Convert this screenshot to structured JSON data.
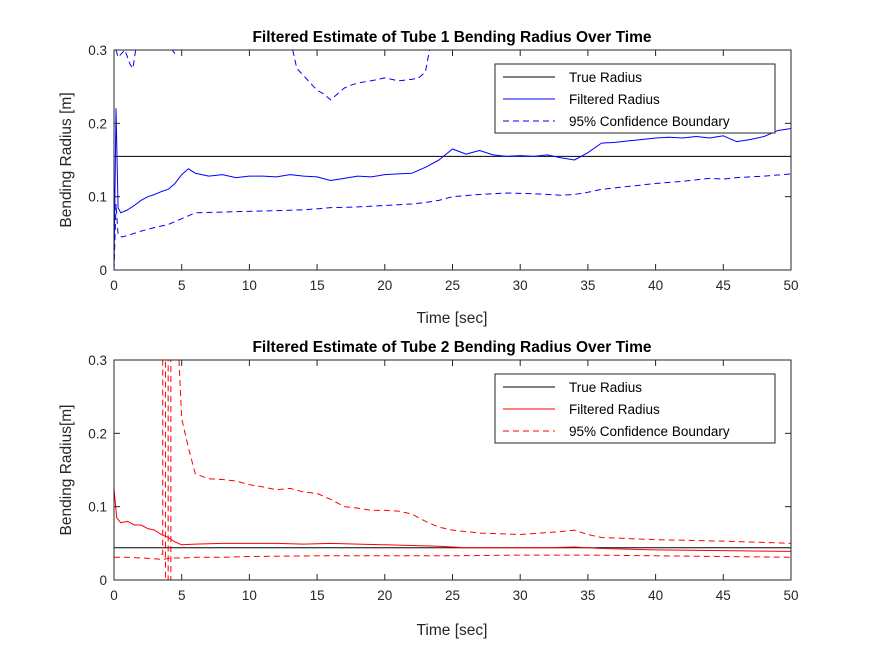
{
  "chart_data": [
    {
      "type": "line",
      "title": "Filtered Estimate of Tube 1 Bending Radius Over Time",
      "xlabel": "Time [sec]",
      "ylabel": "Bending Radius [m]",
      "xlim": [
        0,
        50
      ],
      "ylim": [
        0,
        0.3
      ],
      "xticks": [
        "0",
        "5",
        "10",
        "15",
        "20",
        "25",
        "30",
        "35",
        "40",
        "45",
        "50"
      ],
      "yticks": [
        "0",
        "0.1",
        "0.2",
        "0.3"
      ],
      "grid": false,
      "legend_position": "top-right",
      "colors": {
        "true": "#000000",
        "filtered": "#0000ff",
        "conf": "#0000ff"
      },
      "series": [
        {
          "name": "True Radius",
          "style": "solid",
          "color": "#000000",
          "x": [
            0,
            50
          ],
          "y": [
            0.155,
            0.155
          ]
        },
        {
          "name": "Filtered Radius",
          "style": "solid",
          "color": "#0000ff",
          "x": [
            0,
            0.15,
            0.3,
            0.5,
            1,
            1.5,
            2,
            2.5,
            3,
            3.5,
            4,
            4.5,
            5,
            5.5,
            6,
            7,
            8,
            9,
            10,
            11,
            12,
            13,
            14,
            15,
            16,
            17,
            18,
            19,
            20,
            21,
            22,
            23,
            24,
            25,
            26,
            27,
            28,
            29,
            30,
            31,
            32,
            33,
            34,
            35,
            36,
            37,
            38,
            39,
            40,
            41,
            42,
            43,
            44,
            45,
            46,
            47,
            48,
            49,
            50
          ],
          "y": [
            0.0,
            0.22,
            0.085,
            0.078,
            0.082,
            0.088,
            0.095,
            0.1,
            0.103,
            0.107,
            0.11,
            0.118,
            0.13,
            0.138,
            0.132,
            0.128,
            0.13,
            0.126,
            0.128,
            0.128,
            0.127,
            0.13,
            0.128,
            0.127,
            0.122,
            0.125,
            0.128,
            0.127,
            0.13,
            0.131,
            0.132,
            0.14,
            0.15,
            0.165,
            0.158,
            0.163,
            0.157,
            0.155,
            0.156,
            0.155,
            0.157,
            0.153,
            0.15,
            0.16,
            0.173,
            0.174,
            0.176,
            0.178,
            0.18,
            0.181,
            0.18,
            0.182,
            0.18,
            0.183,
            0.175,
            0.178,
            0.182,
            0.19,
            0.193
          ]
        },
        {
          "name": "95% Confidence Boundary",
          "style": "dashed",
          "color": "#0000ff",
          "x": [
            0,
            0.15,
            0.3,
            0.6,
            1,
            2,
            3,
            4,
            4.5,
            5,
            6,
            8,
            10,
            12,
            14,
            16,
            18,
            20,
            22,
            23,
            24,
            25,
            27,
            29,
            31,
            33,
            34,
            35,
            36,
            38,
            40,
            42,
            44,
            45,
            46,
            48,
            50
          ],
          "y": [
            0.0,
            0.09,
            0.048,
            0.045,
            0.047,
            0.053,
            0.058,
            0.062,
            0.066,
            0.07,
            0.078,
            0.079,
            0.08,
            0.081,
            0.082,
            0.085,
            0.086,
            0.088,
            0.09,
            0.092,
            0.095,
            0.1,
            0.103,
            0.105,
            0.104,
            0.102,
            0.103,
            0.106,
            0.11,
            0.114,
            0.118,
            0.121,
            0.125,
            0.124,
            0.126,
            0.128,
            0.131
          ]
        },
        {
          "name": "",
          "style": "dashed",
          "color": "#0000ff",
          "x": [
            0.15,
            0.3,
            0.8,
            1.2,
            1.4,
            1.6
          ],
          "y": [
            0.3,
            0.29,
            0.3,
            0.28,
            0.275,
            0.3
          ]
        },
        {
          "name": "",
          "style": "dashed",
          "color": "#0000ff",
          "x": [
            13.2,
            13.5,
            14,
            14.5,
            15,
            15.5,
            16,
            16.5,
            17,
            17.5,
            18,
            19,
            20,
            21,
            22,
            22.5,
            23,
            23.3
          ],
          "y": [
            0.3,
            0.275,
            0.265,
            0.255,
            0.245,
            0.24,
            0.232,
            0.24,
            0.248,
            0.252,
            0.255,
            0.258,
            0.262,
            0.258,
            0.26,
            0.262,
            0.27,
            0.3
          ]
        },
        {
          "name": "",
          "style": "dashed",
          "color": "#0000ff",
          "x": [
            4.3,
            4.5
          ],
          "y": [
            0.3,
            0.295
          ]
        }
      ]
    },
    {
      "type": "line",
      "title": "Filtered Estimate of Tube 2 Bending Radius Over Time",
      "xlabel": "Time [sec]",
      "ylabel": "Bending Radius[m]",
      "xlim": [
        0,
        50
      ],
      "ylim": [
        0,
        0.3
      ],
      "xticks": [
        "0",
        "5",
        "10",
        "15",
        "20",
        "25",
        "30",
        "35",
        "40",
        "45",
        "50"
      ],
      "yticks": [
        "0",
        "0.1",
        "0.2",
        "0.3"
      ],
      "grid": false,
      "legend_position": "top-right",
      "colors": {
        "true": "#000000",
        "filtered": "#ff0000",
        "conf": "#ff0000"
      },
      "series": [
        {
          "name": "True Radius",
          "style": "solid",
          "color": "#000000",
          "x": [
            0,
            50
          ],
          "y": [
            0.044,
            0.044
          ]
        },
        {
          "name": "Filtered Radius",
          "style": "solid",
          "color": "#ff0000",
          "x": [
            0,
            0.2,
            0.5,
            1,
            1.5,
            2,
            2.5,
            3,
            3.5,
            4,
            4.5,
            5,
            6,
            8,
            10,
            12,
            14,
            16,
            18,
            20,
            22,
            24,
            26,
            28,
            30,
            32,
            34,
            36,
            40,
            45,
            50
          ],
          "y": [
            0.125,
            0.085,
            0.078,
            0.08,
            0.075,
            0.075,
            0.07,
            0.068,
            0.062,
            0.058,
            0.052,
            0.048,
            0.049,
            0.05,
            0.05,
            0.05,
            0.049,
            0.05,
            0.049,
            0.048,
            0.047,
            0.046,
            0.044,
            0.044,
            0.044,
            0.044,
            0.045,
            0.043,
            0.041,
            0.04,
            0.039
          ]
        },
        {
          "name": "95% Confidence Boundary",
          "style": "dashed",
          "color": "#ff0000",
          "x": [
            4.8,
            5,
            5.5,
            6,
            7,
            8,
            9,
            10,
            11,
            12,
            13,
            14,
            15,
            16,
            17,
            18,
            19,
            20,
            21,
            22,
            23,
            24,
            25,
            27,
            30,
            33,
            34,
            35,
            36,
            40,
            45,
            50
          ],
          "y": [
            0.3,
            0.22,
            0.18,
            0.145,
            0.138,
            0.137,
            0.135,
            0.13,
            0.127,
            0.123,
            0.125,
            0.12,
            0.118,
            0.11,
            0.1,
            0.098,
            0.095,
            0.095,
            0.094,
            0.09,
            0.08,
            0.072,
            0.068,
            0.064,
            0.062,
            0.066,
            0.068,
            0.062,
            0.058,
            0.055,
            0.053,
            0.05
          ]
        },
        {
          "name": "",
          "style": "dashed",
          "color": "#ff0000",
          "x": [
            0,
            1,
            2,
            3,
            3.6,
            4.2,
            5,
            6,
            8,
            10,
            15,
            20,
            25,
            30,
            35,
            40,
            45,
            50
          ],
          "y": [
            0.031,
            0.031,
            0.03,
            0.029,
            0.028,
            0.03,
            0.03,
            0.031,
            0.031,
            0.032,
            0.033,
            0.033,
            0.033,
            0.034,
            0.034,
            0.033,
            0.032,
            0.031
          ]
        },
        {
          "name": "",
          "style": "dashed",
          "color": "#ff0000",
          "x": [
            3.5,
            3.6,
            3.6,
            3.8,
            3.8
          ],
          "y": [
            0.035,
            0.035,
            0.3,
            0.3,
            0.0
          ]
        },
        {
          "name": "",
          "style": "dashed",
          "color": "#ff0000",
          "x": [
            3.9,
            4.0,
            4.0,
            4.2,
            4.2
          ],
          "y": [
            0.0,
            0.0,
            0.3,
            0.3,
            0.0
          ]
        }
      ]
    }
  ]
}
